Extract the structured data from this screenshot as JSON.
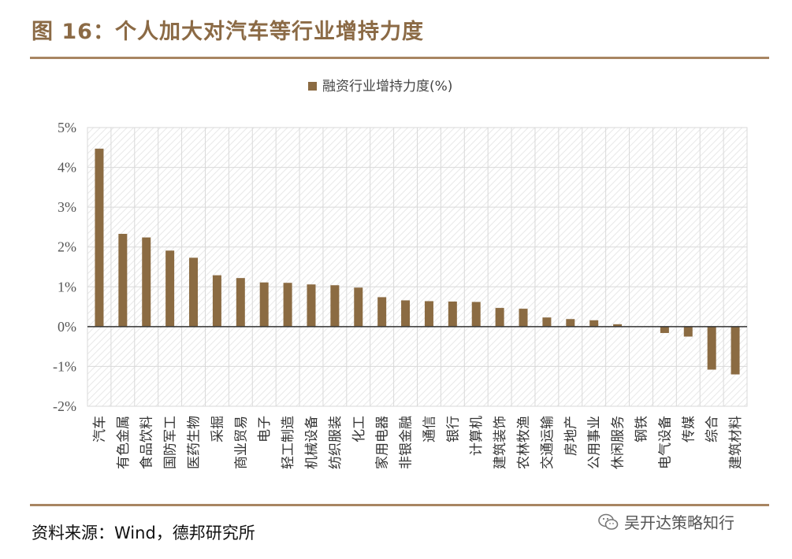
{
  "figure": {
    "title": "图 16：个人加大对汽车等行业增持力度",
    "source": "资料来源：Wind，德邦研究所",
    "watermark": "吴开达策略知行"
  },
  "colors": {
    "bar": "#8B6B42",
    "title": "#8B6A45",
    "rule": "#A88562",
    "plot_border": "#D9D9D9",
    "hatch": "#E6E6E6"
  },
  "icons": {
    "watermark": "wechat-icon"
  },
  "chart_data": {
    "type": "bar",
    "legend": "融资行业增持力度(%)",
    "legend_position": "top",
    "grid": true,
    "ylim": [
      -2,
      5
    ],
    "yticks": [
      "-2%",
      "-1%",
      "0%",
      "1%",
      "2%",
      "3%",
      "4%",
      "5%"
    ],
    "categories": [
      "汽车",
      "有色金属",
      "食品饮料",
      "国防军工",
      "医药生物",
      "采掘",
      "商业贸易",
      "电子",
      "轻工制造",
      "机械设备",
      "纺织服装",
      "化工",
      "家用电器",
      "非银金融",
      "通信",
      "银行",
      "计算机",
      "建筑装饰",
      "农林牧渔",
      "交通运输",
      "房地产",
      "公用事业",
      "休闲服务",
      "钢铁",
      "电气设备",
      "传媒",
      "综合",
      "建筑材料"
    ],
    "series": [
      {
        "name": "融资行业增持力度(%)",
        "values": [
          4.47,
          2.33,
          2.24,
          1.91,
          1.73,
          1.29,
          1.22,
          1.11,
          1.1,
          1.06,
          1.04,
          0.98,
          0.74,
          0.66,
          0.64,
          0.63,
          0.62,
          0.47,
          0.45,
          0.23,
          0.19,
          0.16,
          0.06,
          0.0,
          -0.16,
          -0.25,
          -1.08,
          -1.2
        ]
      }
    ]
  }
}
